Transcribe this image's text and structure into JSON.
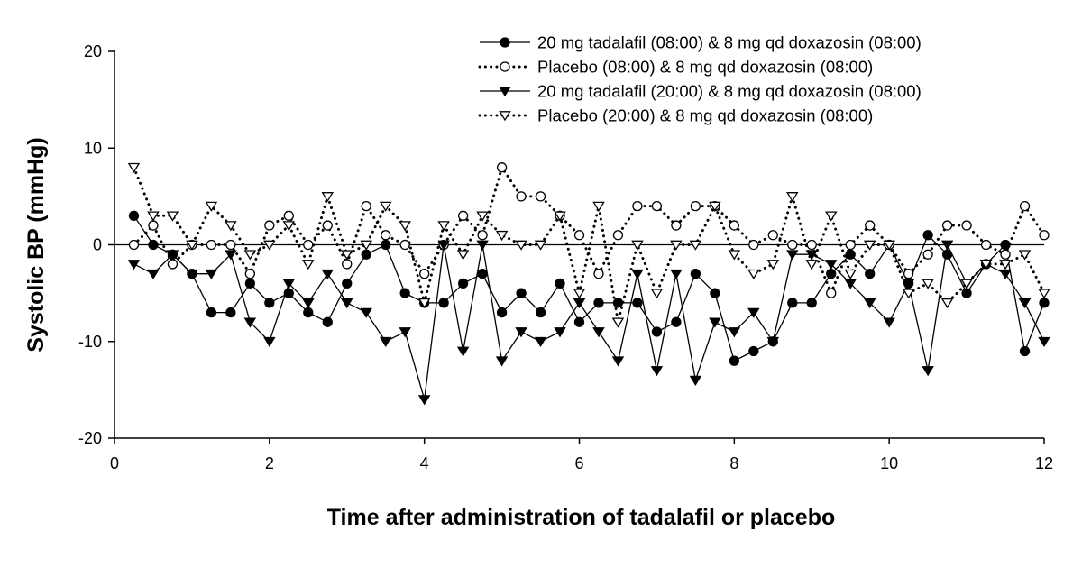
{
  "chart_data": {
    "type": "line",
    "title": "",
    "xlabel": "Time after administration of tadalafil or placebo",
    "ylabel": "Systolic BP (mmHg)",
    "xlim": [
      0,
      12
    ],
    "ylim": [
      -20,
      20
    ],
    "xticks": [
      0,
      2,
      4,
      6,
      8,
      10,
      12
    ],
    "yticks": [
      -20,
      -10,
      0,
      10,
      20
    ],
    "xtick_labels": [
      "0",
      "2",
      "4",
      "6",
      "8",
      "10",
      "12"
    ],
    "ytick_labels": [
      "-20",
      "-10",
      "0",
      "10",
      "20"
    ],
    "reference_line_y": 0,
    "legend_position": "top-right",
    "x": [
      0.25,
      0.5,
      0.75,
      1,
      1.25,
      1.5,
      1.75,
      2,
      2.25,
      2.5,
      2.75,
      3,
      3.25,
      3.5,
      3.75,
      4,
      4.25,
      4.5,
      4.75,
      5,
      5.25,
      5.5,
      5.75,
      6,
      6.25,
      6.5,
      6.75,
      7,
      7.25,
      7.5,
      7.75,
      8,
      8.25,
      8.5,
      8.75,
      9,
      9.25,
      9.5,
      9.75,
      10,
      10.25,
      10.5,
      10.75,
      11,
      11.25,
      11.5,
      11.75,
      12
    ],
    "series": [
      {
        "name": "20 mg tadalafil (08:00) & 8 mg qd doxazosin (08:00)",
        "marker": "filled-circle",
        "line": "solid",
        "values": [
          3,
          0,
          -1,
          -3,
          -7,
          -7,
          -4,
          -6,
          -5,
          -7,
          -8,
          -4,
          -1,
          0,
          -5,
          -6,
          -6,
          -4,
          -3,
          -7,
          -5,
          -7,
          -4,
          -8,
          -6,
          -6,
          -6,
          -9,
          -8,
          -3,
          -5,
          -12,
          -11,
          -10,
          -6,
          -6,
          -3,
          -1,
          -3,
          0,
          -4,
          1,
          -1,
          -5,
          -2,
          0,
          -11,
          -6
        ]
      },
      {
        "name": "Placebo (08:00) & 8 mg qd doxazosin (08:00)",
        "marker": "open-circle",
        "line": "dotted",
        "values": [
          0,
          2,
          -2,
          0,
          0,
          0,
          -3,
          2,
          3,
          0,
          2,
          -2,
          4,
          1,
          0,
          -3,
          0,
          3,
          1,
          8,
          5,
          5,
          3,
          1,
          -3,
          1,
          4,
          4,
          2,
          4,
          4,
          2,
          0,
          1,
          0,
          0,
          -5,
          0,
          2,
          0,
          -3,
          -1,
          2,
          2,
          0,
          -1,
          4,
          1
        ]
      },
      {
        "name": "20 mg tadalafil (20:00) & 8 mg qd doxazosin (08:00)",
        "marker": "filled-triangle-down",
        "line": "solid",
        "values": [
          -2,
          -3,
          -1,
          -3,
          -3,
          -1,
          -8,
          -10,
          -4,
          -6,
          -3,
          -6,
          -7,
          -10,
          -9,
          -16,
          0,
          -11,
          0,
          -12,
          -9,
          -10,
          -9,
          -6,
          -9,
          -12,
          -3,
          -13,
          -3,
          -14,
          -8,
          -9,
          -7,
          -10,
          -1,
          -1,
          -2,
          -4,
          -6,
          -8,
          -4,
          -13,
          0,
          -4,
          -2,
          -3,
          -6,
          -10
        ]
      },
      {
        "name": "Placebo (20:00) & 8 mg qd doxazosin (08:00)",
        "marker": "open-triangle-down",
        "line": "dotted",
        "values": [
          8,
          3,
          3,
          0,
          4,
          2,
          -1,
          0,
          2,
          -2,
          5,
          -1,
          0,
          4,
          2,
          -6,
          2,
          -1,
          3,
          1,
          0,
          0,
          3,
          -5,
          4,
          -8,
          0,
          -5,
          0,
          0,
          4,
          -1,
          -3,
          -2,
          5,
          -2,
          3,
          -3,
          0,
          0,
          -5,
          -4,
          -6,
          -4,
          -2,
          -2,
          -1,
          -5
        ]
      }
    ]
  }
}
